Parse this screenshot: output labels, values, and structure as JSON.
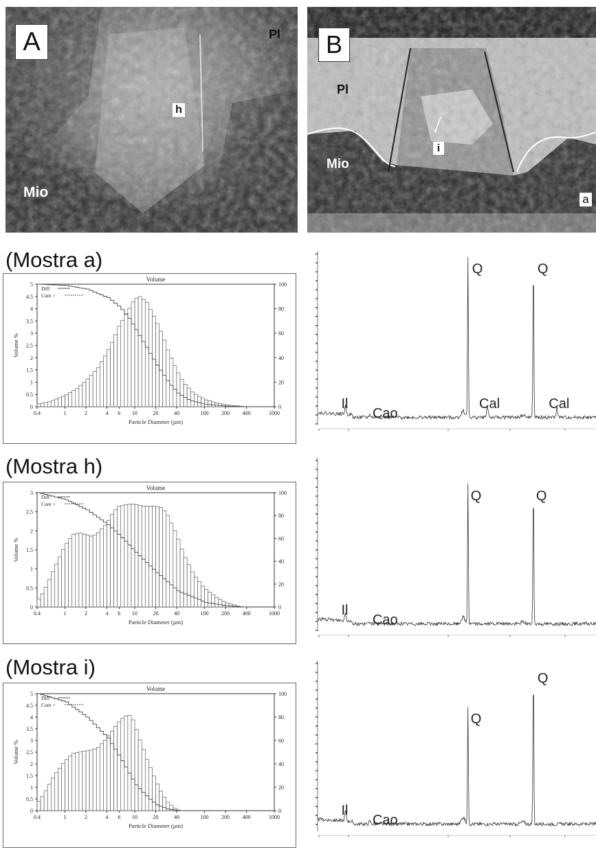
{
  "photos": [
    {
      "panel_letter": "A",
      "labels": [
        "Pl",
        "h",
        "Mio"
      ]
    },
    {
      "panel_letter": "B",
      "labels": [
        "Pl",
        "Mio",
        "i",
        "a"
      ]
    }
  ],
  "samples": [
    {
      "heading": "(Mostra a)"
    },
    {
      "heading": "(Mostra h)"
    },
    {
      "heading": "(Mostra i)"
    }
  ],
  "chart_data": [
    {
      "type": "bar",
      "title": "Volume",
      "xlabel": "Particle Diameter (µm)",
      "ylabel": "Volume %",
      "x_scale": "log",
      "xlim": [
        0.4,
        1000
      ],
      "ylim": [
        0,
        5
      ],
      "y2lim": [
        0,
        100
      ],
      "xticks": [
        "0.4",
        "1",
        "2",
        "4",
        "6",
        "10",
        "20",
        "40",
        "100",
        "200",
        "400",
        "1000"
      ],
      "yticks": [
        "0",
        "0.5",
        "1",
        "1.5",
        "2",
        "2.5",
        "3",
        "3.5",
        "4",
        "4.5",
        "5"
      ],
      "y2ticks": [
        "0",
        "20",
        "40",
        "60",
        "80",
        "100"
      ],
      "legend": [
        "Diff",
        "Cum >"
      ],
      "series": [
        {
          "name": "Diff",
          "axis": "left",
          "x": [
            0.4,
            0.6,
            1,
            1.5,
            2,
            3,
            4,
            5,
            6,
            8,
            10,
            12,
            15,
            20,
            25,
            30,
            40,
            50,
            70,
            100,
            150,
            200,
            300,
            400
          ],
          "values": [
            0.1,
            0.2,
            0.45,
            0.75,
            1.05,
            1.6,
            2.2,
            2.75,
            3.3,
            3.9,
            4.4,
            4.5,
            4.25,
            3.55,
            2.95,
            2.3,
            1.5,
            1.0,
            0.55,
            0.3,
            0.15,
            0.08,
            0.03,
            0
          ]
        },
        {
          "name": "Cum >",
          "axis": "right",
          "x": [
            0.4,
            1,
            2,
            4,
            6,
            8,
            10,
            15,
            20,
            30,
            40,
            60,
            100,
            200,
            400
          ],
          "values": [
            100,
            99,
            96,
            89,
            81,
            72,
            63,
            46,
            34,
            19,
            11,
            5,
            2,
            0.5,
            0
          ]
        }
      ]
    },
    {
      "type": "line",
      "x_scale": "2-theta",
      "x": [
        5,
        8,
        9,
        10,
        15,
        20,
        25,
        26.5,
        30,
        33,
        35,
        36,
        39,
        40,
        45
      ],
      "values": [
        4,
        3.5,
        5,
        2,
        0.8,
        0.5,
        0.9,
        2.5,
        1.5,
        7,
        1.5,
        18,
        1.2,
        9,
        0.5
      ],
      "peaks": [
        {
          "label": "Il",
          "x": 9,
          "height": 5
        },
        {
          "label": "Cao",
          "x": 12.5,
          "height": 1.8
        },
        {
          "label": "Q",
          "x": 26.6,
          "height": 100
        },
        {
          "label": "Cal",
          "x": 29.4,
          "height": 7
        },
        {
          "label": "Q",
          "x": 36,
          "height": 100
        },
        {
          "label": "Cal",
          "x": 39.4,
          "height": 6
        }
      ]
    },
    {
      "type": "bar",
      "title": "Volume",
      "xlabel": "Particle Diameter (µm)",
      "ylabel": "Volume %",
      "x_scale": "log",
      "xlim": [
        0.4,
        1000
      ],
      "ylim": [
        0,
        3
      ],
      "y2lim": [
        0,
        100
      ],
      "xticks": [
        "0.4",
        "1",
        "2",
        "4",
        "6",
        "10",
        "20",
        "40",
        "100",
        "200",
        "400",
        "1000"
      ],
      "yticks": [
        "0",
        "0.5",
        "1",
        "1.5",
        "2",
        "2.5",
        "3"
      ],
      "y2ticks": [
        "0",
        "20",
        "40",
        "60",
        "80",
        "100"
      ],
      "legend": [
        "Diff",
        "Cum >"
      ],
      "series": [
        {
          "name": "Diff",
          "axis": "left",
          "x": [
            0.4,
            0.5,
            0.7,
            1,
            1.3,
            1.6,
            2,
            2.5,
            3,
            4,
            5,
            6,
            8,
            10,
            13,
            16,
            20,
            25,
            30,
            40,
            50,
            70,
            100,
            150,
            200,
            300,
            350
          ],
          "values": [
            0.15,
            0.4,
            1.0,
            1.6,
            1.9,
            1.95,
            1.9,
            1.85,
            1.95,
            2.2,
            2.5,
            2.65,
            2.7,
            2.7,
            2.65,
            2.65,
            2.65,
            2.6,
            2.4,
            1.9,
            1.4,
            0.85,
            0.5,
            0.25,
            0.12,
            0.03,
            0
          ]
        },
        {
          "name": "Cum >",
          "axis": "right",
          "x": [
            0.4,
            1,
            2,
            4,
            6,
            10,
            20,
            40,
            100,
            200,
            350
          ],
          "values": [
            100,
            94,
            85,
            72,
            62,
            48,
            30,
            14,
            4,
            1,
            0
          ]
        }
      ]
    },
    {
      "type": "line",
      "x_scale": "2-theta",
      "peaks": [
        {
          "label": "Il",
          "x": 9,
          "height": 5
        },
        {
          "label": "Cao",
          "x": 12.5,
          "height": 1.5
        },
        {
          "label": "Q",
          "x": 26.6,
          "height": 88
        },
        {
          "label": "Q",
          "x": 36,
          "height": 88
        }
      ]
    },
    {
      "type": "bar",
      "title": "Volume",
      "xlabel": "Particle Diameter (µm)",
      "ylabel": "Volume %",
      "x_scale": "log",
      "xlim": [
        0.4,
        1000
      ],
      "ylim": [
        0,
        5
      ],
      "y2lim": [
        0,
        100
      ],
      "xticks": [
        "0.4",
        "1",
        "2",
        "4",
        "6",
        "10",
        "20",
        "40",
        "100",
        "200",
        "400",
        "1000"
      ],
      "yticks": [
        "0",
        "0.5",
        "1",
        "1.5",
        "2",
        "2.5",
        "3",
        "3.5",
        "4",
        "4.5",
        "5"
      ],
      "y2ticks": [
        "0",
        "20",
        "40",
        "60",
        "80",
        "100"
      ],
      "legend": [
        "Diff",
        "Cum >"
      ],
      "series": [
        {
          "name": "Diff",
          "axis": "left",
          "x": [
            0.4,
            0.5,
            0.7,
            1,
            1.3,
            1.6,
            2,
            2.5,
            3,
            4,
            5,
            6,
            7,
            8,
            9,
            10,
            12,
            15,
            20,
            25,
            30,
            40,
            45
          ],
          "values": [
            0.3,
            0.7,
            1.5,
            2.1,
            2.45,
            2.5,
            2.55,
            2.6,
            2.7,
            3.1,
            3.5,
            3.8,
            4.0,
            4.1,
            4.05,
            3.7,
            3.0,
            2.2,
            1.3,
            0.7,
            0.35,
            0.05,
            0
          ]
        },
        {
          "name": "Cum >",
          "axis": "right",
          "x": [
            0.4,
            1,
            2,
            4,
            6,
            8,
            10,
            15,
            20,
            30,
            45
          ],
          "values": [
            100,
            93,
            80,
            62,
            45,
            32,
            22,
            11,
            5,
            1,
            0
          ]
        }
      ]
    },
    {
      "type": "line",
      "x_scale": "2-theta",
      "peaks": [
        {
          "label": "Il",
          "x": 9,
          "height": 6
        },
        {
          "label": "Cao",
          "x": 12.5,
          "height": 2
        },
        {
          "label": "Q",
          "x": 26.6,
          "height": 75
        },
        {
          "label": "Q",
          "x": 36,
          "height": 100
        }
      ]
    }
  ]
}
